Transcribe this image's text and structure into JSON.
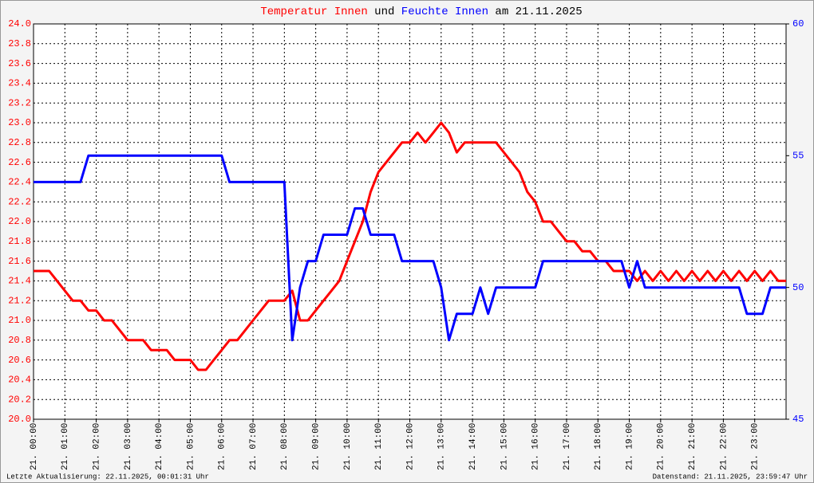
{
  "chart_data": {
    "type": "line",
    "title_parts": [
      "und",
      "am 21.11.2025"
    ],
    "footer_left": "Letzte Aktualisierung: 22.11.2025, 00:01:31 Uhr",
    "footer_right": "Datenstand: 21.11.2025, 23:59:47 Uhr",
    "x": [
      0,
      0.25,
      0.5,
      0.75,
      1,
      1.25,
      1.5,
      1.75,
      2,
      2.25,
      2.5,
      2.75,
      3,
      3.25,
      3.5,
      3.75,
      4,
      4.25,
      4.5,
      4.75,
      5,
      5.25,
      5.5,
      5.75,
      6,
      6.25,
      6.5,
      6.75,
      7,
      7.25,
      7.5,
      7.75,
      8,
      8.25,
      8.5,
      8.75,
      9,
      9.25,
      9.5,
      9.75,
      10,
      10.25,
      10.5,
      10.75,
      11,
      11.25,
      11.5,
      11.75,
      12,
      12.25,
      12.5,
      12.75,
      13,
      13.25,
      13.5,
      13.75,
      14,
      14.25,
      14.5,
      14.75,
      15,
      15.25,
      15.5,
      15.75,
      16,
      16.25,
      16.5,
      16.75,
      17,
      17.25,
      17.5,
      17.75,
      18,
      18.25,
      18.5,
      18.75,
      19,
      19.25,
      19.5,
      19.75,
      20,
      20.25,
      20.5,
      20.75,
      21,
      21.25,
      21.5,
      21.75,
      22,
      22.25,
      22.5,
      22.75,
      23,
      23.25,
      23.5,
      23.75,
      24
    ],
    "xlim": [
      0,
      24
    ],
    "xticks": [
      {
        "value": 0,
        "label": "21. 00:00"
      },
      {
        "value": 1,
        "label": "21. 01:00"
      },
      {
        "value": 2,
        "label": "21. 02:00"
      },
      {
        "value": 3,
        "label": "21. 03:00"
      },
      {
        "value": 4,
        "label": "21. 04:00"
      },
      {
        "value": 5,
        "label": "21. 05:00"
      },
      {
        "value": 6,
        "label": "21. 06:00"
      },
      {
        "value": 7,
        "label": "21. 07:00"
      },
      {
        "value": 8,
        "label": "21. 08:00"
      },
      {
        "value": 9,
        "label": "21. 09:00"
      },
      {
        "value": 10,
        "label": "21. 10:00"
      },
      {
        "value": 11,
        "label": "21. 11:00"
      },
      {
        "value": 12,
        "label": "21. 12:00"
      },
      {
        "value": 13,
        "label": "21. 13:00"
      },
      {
        "value": 14,
        "label": "21. 14:00"
      },
      {
        "value": 15,
        "label": "21. 15:00"
      },
      {
        "value": 16,
        "label": "21. 16:00"
      },
      {
        "value": 17,
        "label": "21. 17:00"
      },
      {
        "value": 18,
        "label": "21. 18:00"
      },
      {
        "value": 19,
        "label": "21. 19:00"
      },
      {
        "value": 20,
        "label": "21. 20:00"
      },
      {
        "value": 21,
        "label": "21. 21:00"
      },
      {
        "value": 22,
        "label": "21. 22:00"
      },
      {
        "value": 23,
        "label": "21. 23:00"
      }
    ],
    "ylim": [
      20,
      24
    ],
    "yticks": [
      {
        "value": 20,
        "label": "20.0"
      },
      {
        "value": 20.2,
        "label": "20.2"
      },
      {
        "value": 20.4,
        "label": "20.4"
      },
      {
        "value": 20.6,
        "label": "20.6"
      },
      {
        "value": 20.8,
        "label": "20.8"
      },
      {
        "value": 21,
        "label": "21.0"
      },
      {
        "value": 21.2,
        "label": "21.2"
      },
      {
        "value": 21.4,
        "label": "21.4"
      },
      {
        "value": 21.6,
        "label": "21.6"
      },
      {
        "value": 21.8,
        "label": "21.8"
      },
      {
        "value": 22,
        "label": "22.0"
      },
      {
        "value": 22.2,
        "label": "22.2"
      },
      {
        "value": 22.4,
        "label": "22.4"
      },
      {
        "value": 22.6,
        "label": "22.6"
      },
      {
        "value": 22.8,
        "label": "22.8"
      },
      {
        "value": 23,
        "label": "23.0"
      },
      {
        "value": 23.2,
        "label": "23.2"
      },
      {
        "value": 23.4,
        "label": "23.4"
      },
      {
        "value": 23.6,
        "label": "23.6"
      },
      {
        "value": 23.8,
        "label": "23.8"
      },
      {
        "value": 24,
        "label": "24.0"
      }
    ],
    "y2lim": [
      45,
      60
    ],
    "y2ticks": [
      45,
      50,
      55,
      60
    ],
    "grid": true,
    "series": [
      {
        "name": "Temperatur Innen",
        "color": "#ff0000",
        "values": [
          21.5,
          21.5,
          21.5,
          21.4,
          21.3,
          21.2,
          21.2,
          21.1,
          21.1,
          21.0,
          21.0,
          20.9,
          20.8,
          20.8,
          20.8,
          20.7,
          20.7,
          20.7,
          20.6,
          20.6,
          20.6,
          20.5,
          20.5,
          20.6,
          20.7,
          20.8,
          20.8,
          20.9,
          21.0,
          21.1,
          21.2,
          21.2,
          21.2,
          21.3,
          21.0,
          21.0,
          21.1,
          21.2,
          21.3,
          21.4,
          21.6,
          21.8,
          22.0,
          22.3,
          22.5,
          22.6,
          22.7,
          22.8,
          22.8,
          22.9,
          22.8,
          22.9,
          23.0,
          22.9,
          22.7,
          22.8,
          22.8,
          22.8,
          22.8,
          22.8,
          22.7,
          22.6,
          22.5,
          22.3,
          22.2,
          22.0,
          22.0,
          21.9,
          21.8,
          21.8,
          21.7,
          21.7,
          21.6,
          21.6,
          21.5,
          21.5,
          21.5,
          21.4,
          21.5,
          21.4,
          21.5,
          21.4,
          21.5,
          21.4,
          21.5,
          21.4,
          21.5,
          21.4,
          21.5,
          21.4,
          21.5,
          21.4,
          21.5,
          21.4,
          21.5,
          21.4,
          21.4
        ]
      },
      {
        "name": "Feuchte Innen",
        "color": "#0000ff",
        "axis": "y2",
        "values": [
          54,
          54,
          54,
          54,
          54,
          54,
          54,
          55,
          55,
          55,
          55,
          55,
          55,
          55,
          55,
          55,
          55,
          55,
          55,
          55,
          55,
          55,
          55,
          55,
          55,
          54,
          54,
          54,
          54,
          54,
          54,
          54,
          54,
          48,
          50,
          51,
          51,
          52,
          52,
          52,
          52,
          53,
          53,
          52,
          52,
          52,
          52,
          51,
          51,
          51,
          51,
          51,
          50,
          48,
          49,
          49,
          49,
          50,
          49,
          50,
          50,
          50,
          50,
          50,
          50,
          51,
          51,
          51,
          51,
          51,
          51,
          51,
          51,
          51,
          51,
          51,
          50,
          51,
          50,
          50,
          50,
          50,
          50,
          50,
          50,
          50,
          50,
          50,
          50,
          50,
          50,
          49,
          49,
          49,
          50,
          50,
          50
        ]
      }
    ]
  }
}
